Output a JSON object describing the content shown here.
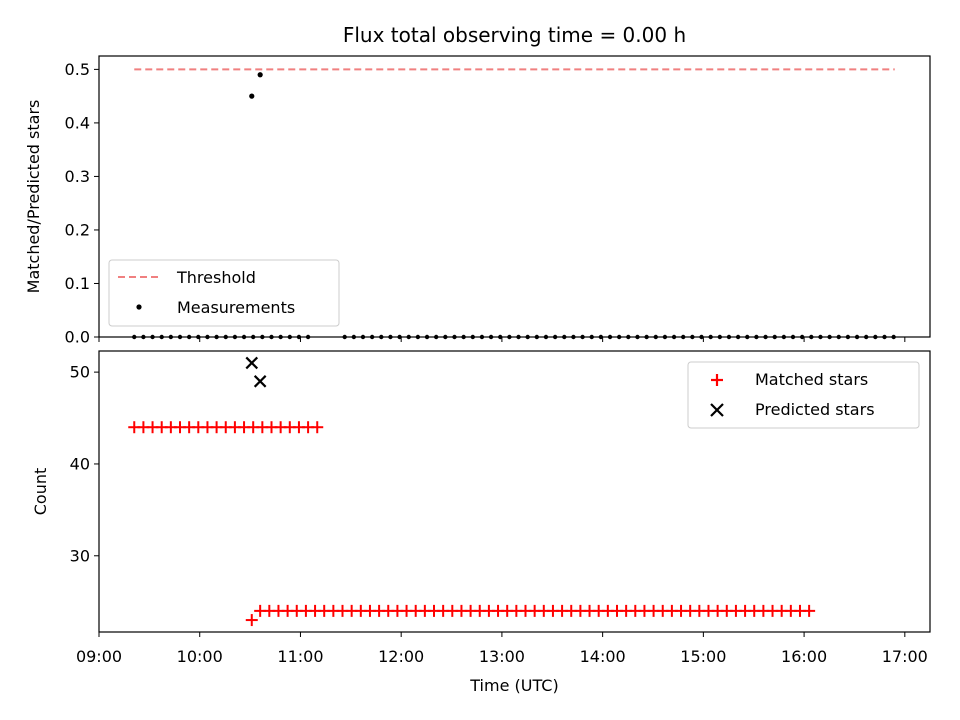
{
  "chart_data": [
    {
      "panel": "top",
      "type": "scatter",
      "title": "Flux total observing time = 0.00 h",
      "xlabel": "",
      "ylabel": "Matched/Predicted stars",
      "xlim": [
        "09:00",
        "17:15"
      ],
      "ylim": [
        0,
        0.525
      ],
      "yticks": [
        0.0,
        0.1,
        0.2,
        0.3,
        0.4,
        0.5
      ],
      "ytick_labels": [
        "0.0",
        "0.1",
        "0.2",
        "0.3",
        "0.4",
        "0.5"
      ],
      "legend": {
        "placement": "lower-left",
        "entries": [
          "Threshold",
          "Measurements"
        ]
      },
      "threshold": {
        "name": "Threshold",
        "value": 0.5,
        "x_start": "09:21",
        "x_end": "16:54",
        "color": "#f08080",
        "style": "dashed"
      },
      "series": [
        {
          "name": "Measurements",
          "marker": "dot",
          "color": "#000000",
          "x_start": "09:21",
          "x_step_minutes": 5.45,
          "count": 84,
          "default_value": 0.0,
          "gap_indices": [
            20,
            21,
            22
          ],
          "special_points": [
            {
              "x": "10:31",
              "y": 0.45
            },
            {
              "x": "10:36",
              "y": 0.49
            }
          ]
        }
      ]
    },
    {
      "panel": "bottom",
      "type": "scatter",
      "title": "",
      "xlabel": "Time (UTC)",
      "ylabel": "Count",
      "xlim": [
        "09:00",
        "17:15"
      ],
      "ylim": [
        21.7,
        52.3
      ],
      "yticks": [
        30,
        40,
        50
      ],
      "ytick_labels": [
        "30",
        "40",
        "50"
      ],
      "xticks": [
        "09:00",
        "10:00",
        "11:00",
        "12:00",
        "13:00",
        "14:00",
        "15:00",
        "16:00",
        "17:00"
      ],
      "legend": {
        "placement": "top-right",
        "entries": [
          "Matched stars",
          "Predicted stars"
        ]
      },
      "series": [
        {
          "name": "Matched stars",
          "marker": "plus",
          "color": "#ff0000",
          "segments": [
            {
              "x_start": "09:21",
              "x_step_minutes": 5.45,
              "count": 21,
              "value": 44
            },
            {
              "x_start": "10:36",
              "x_step_minutes": 5.45,
              "count": 61,
              "value": 24
            }
          ],
          "special_points": [
            {
              "x": "10:31",
              "y": 23
            }
          ]
        },
        {
          "name": "Predicted stars",
          "marker": "x",
          "color": "#000000",
          "points": [
            {
              "x": "10:31",
              "y": 51
            },
            {
              "x": "10:36",
              "y": 49
            }
          ]
        }
      ]
    }
  ]
}
